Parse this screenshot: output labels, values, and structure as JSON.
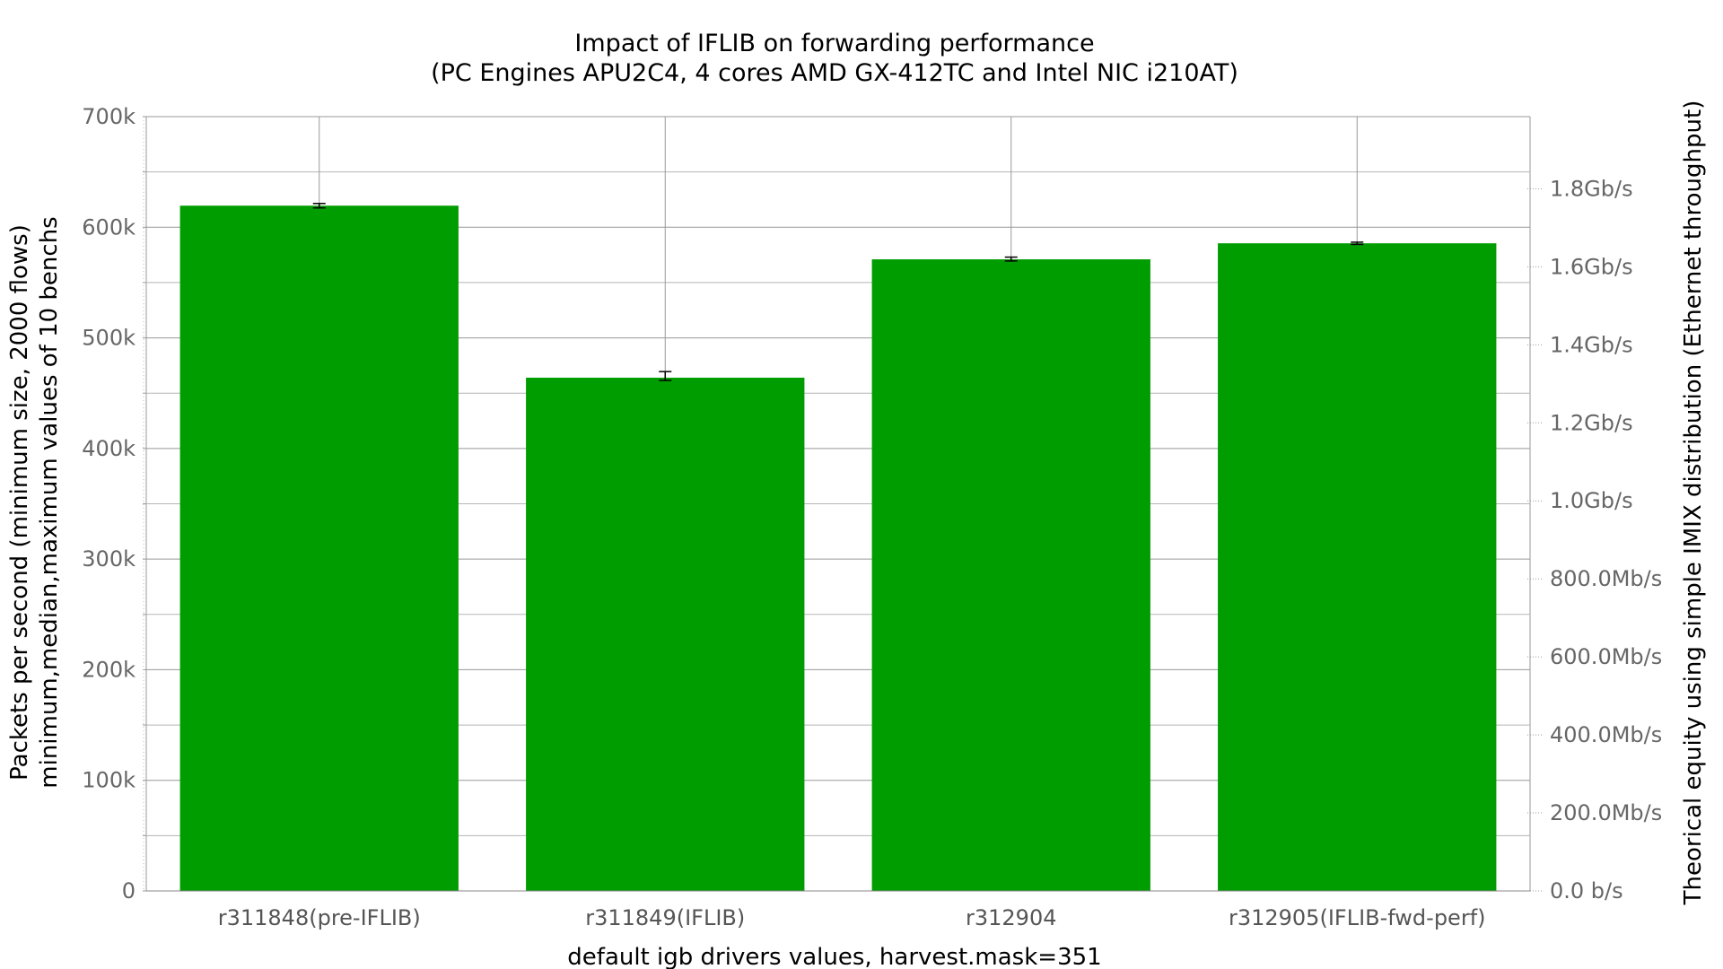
{
  "chart_data": {
    "type": "bar",
    "title": "Impact of IFLIB on forwarding performance",
    "subtitle": "(PC Engines APU2C4, 4 cores AMD GX-412TC and Intel NIC i210AT)",
    "xlabel": "default igb drivers values, harvest.mask=351",
    "ylabel": "Packets per second (minimum size, 2000 flows)",
    "ylabel2": "minimum,median,maximum values of 10 benchs",
    "y2label": "Theorical equity using simple IMIX distribution (Ethernet throughput)",
    "categories": [
      "r311848(pre-IFLIB)",
      "r311849(IFLIB)",
      "r312904",
      "r312905(IFLIB-fwd-perf)"
    ],
    "series": [
      {
        "values": [
          619500,
          464000,
          571000,
          585500
        ],
        "min": [
          617500,
          461500,
          569500,
          584500
        ],
        "max": [
          621500,
          469500,
          573000,
          586500
        ]
      }
    ],
    "ylim": [
      0,
      700000
    ],
    "y_ticks": [
      0,
      100000,
      200000,
      300000,
      400000,
      500000,
      600000,
      700000
    ],
    "y_tick_labels": [
      "0",
      "100k",
      "200k",
      "300k",
      "400k",
      "500k",
      "600k",
      "700k"
    ],
    "y2lim": [
      0,
      1985000000
    ],
    "y2_ticks": [
      0,
      200000000,
      400000000,
      600000000,
      800000000,
      1000000000,
      1200000000,
      1400000000,
      1600000000,
      1800000000
    ],
    "y2_tick_labels": [
      "0.0 b/s",
      "200.0Mb/s",
      "400.0Mb/s",
      "600.0Mb/s",
      "800.0Mb/s",
      "1.0Gb/s",
      "1.2Gb/s",
      "1.4Gb/s",
      "1.6Gb/s",
      "1.8Gb/s"
    ],
    "grid": true,
    "bar_color": "#009d00",
    "error_bar_color": "#000000"
  }
}
